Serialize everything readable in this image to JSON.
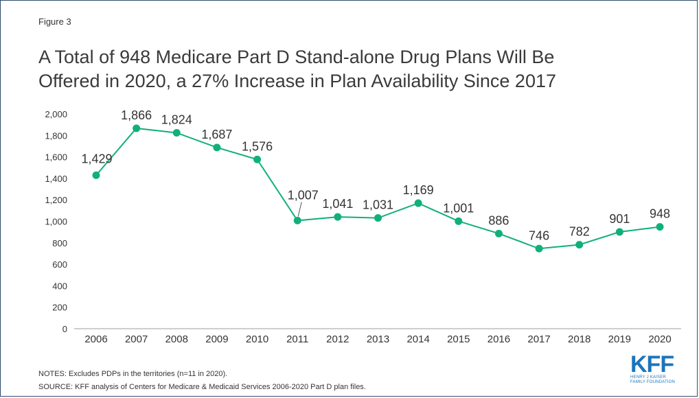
{
  "figure_label": "Figure 3",
  "title_line1": "A Total of 948 Medicare Part D Stand-alone Drug Plans Will Be",
  "title_line2": "Offered in 2020, a 27% Increase in Plan Availability Since 2017",
  "notes": "NOTES: Excludes PDPs in the territories (n=11 in 2020).",
  "source": "SOURCE: KFF analysis of Centers for Medicare & Medicaid Services 2006-2020 Part D plan files.",
  "logo": {
    "main": "KFF",
    "line1": "HENRY J KAISER",
    "line2": "FAMILY FOUNDATION"
  },
  "colors": {
    "series": "#10b079",
    "logo": "#1c75bc",
    "frame": "#2e4a6b"
  },
  "chart_data": {
    "type": "line",
    "categories": [
      "2006",
      "2007",
      "2008",
      "2009",
      "2010",
      "2011",
      "2012",
      "2013",
      "2014",
      "2015",
      "2016",
      "2017",
      "2018",
      "2019",
      "2020"
    ],
    "values": [
      1429,
      1866,
      1824,
      1687,
      1576,
      1007,
      1041,
      1031,
      1169,
      1001,
      886,
      746,
      782,
      901,
      948
    ],
    "data_labels": [
      "1,429",
      "1,866",
      "1,824",
      "1,687",
      "1,576",
      "1,007",
      "1,041",
      "1,031",
      "1,169",
      "1,001",
      "886",
      "746",
      "782",
      "901",
      "948"
    ],
    "y_ticks": [
      "0",
      "200",
      "400",
      "600",
      "800",
      "1,000",
      "1,200",
      "1,400",
      "1,600",
      "1,800",
      "2,000"
    ],
    "ylim": [
      0,
      2000
    ],
    "grid": false,
    "legend": "none"
  }
}
